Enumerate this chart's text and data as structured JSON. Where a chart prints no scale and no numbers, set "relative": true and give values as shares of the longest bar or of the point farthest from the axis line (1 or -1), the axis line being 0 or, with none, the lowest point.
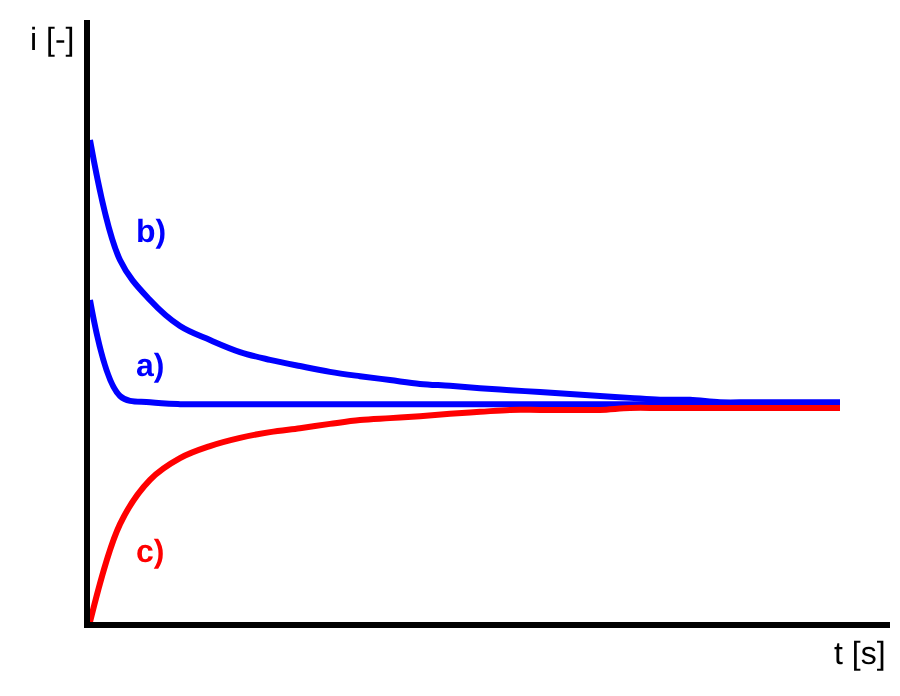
{
  "chart_data": {
    "type": "line",
    "relative": true,
    "xlabel": "t [s]",
    "ylabel": "i [-]",
    "legend": false,
    "marker": "none",
    "line_style": "solid",
    "categories": [
      null,
      null,
      null,
      null,
      null,
      null,
      null,
      null,
      null,
      null,
      null,
      null,
      null,
      null,
      null,
      null,
      null,
      null,
      null,
      null,
      null,
      null,
      null,
      null,
      null,
      null
    ],
    "series": [
      {
        "name": "b)",
        "color": "#0000ff",
        "values": [
          1.0,
          0.751,
          0.668,
          0.614,
          0.585,
          0.56,
          0.544,
          0.531,
          0.519,
          0.51,
          0.502,
          0.494,
          0.49,
          0.485,
          0.481,
          0.477,
          0.473,
          0.469,
          0.465,
          0.461,
          0.461,
          0.456,
          0.456,
          0.456,
          0.456,
          0.456
        ]
      },
      {
        "name": "a)",
        "color": "#0000ff",
        "values": [
          0.668,
          0.469,
          0.456,
          0.452,
          0.452,
          0.452,
          0.452,
          0.452,
          0.452,
          0.452,
          0.452,
          0.452,
          0.452,
          0.452,
          0.452,
          0.452,
          0.452,
          0.452,
          0.452,
          0.452,
          0.452,
          0.452,
          0.452,
          0.452,
          0.452,
          0.452
        ]
      },
      {
        "name": "c)",
        "color": "#ff0000",
        "values": [
          0,
          0.203,
          0.295,
          0.34,
          0.365,
          0.382,
          0.394,
          0.402,
          0.411,
          0.419,
          0.423,
          0.427,
          0.432,
          0.436,
          0.44,
          0.44,
          0.44,
          0.44,
          0.444,
          0.444,
          0.444,
          0.444,
          0.444,
          0.444,
          0.444,
          0.444
        ]
      }
    ]
  }
}
